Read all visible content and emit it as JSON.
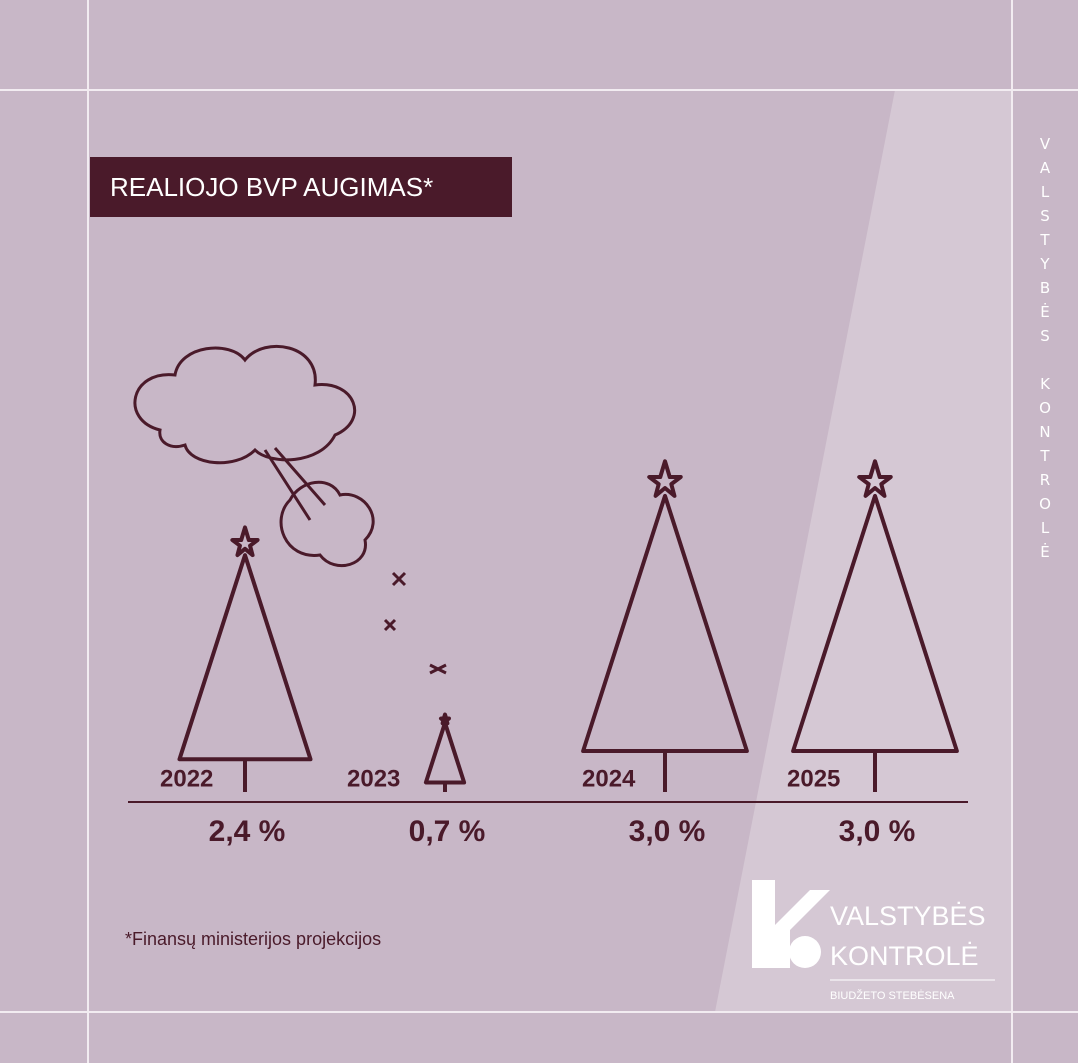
{
  "chart_data": {
    "type": "pictogram",
    "title": "REALIOJO BVP AUGIMAS*",
    "categories": [
      "2022",
      "2023",
      "2024",
      "2025"
    ],
    "values": [
      2.4,
      0.7,
      3.0,
      3.0
    ],
    "value_labels": [
      "2,4 %",
      "0,7 %",
      "3,0 %",
      "3,0 %"
    ],
    "color": "#4a1a2a"
  },
  "footnote": "*Finansų ministerijos projekcijos",
  "side_text": "VALSTYBĖS KONTROLĖ",
  "logo": {
    "line1": "VALSTYBĖS",
    "line2": "KONTROLĖ",
    "subtitle": "BIUDŽETO STEBĖSENA"
  }
}
